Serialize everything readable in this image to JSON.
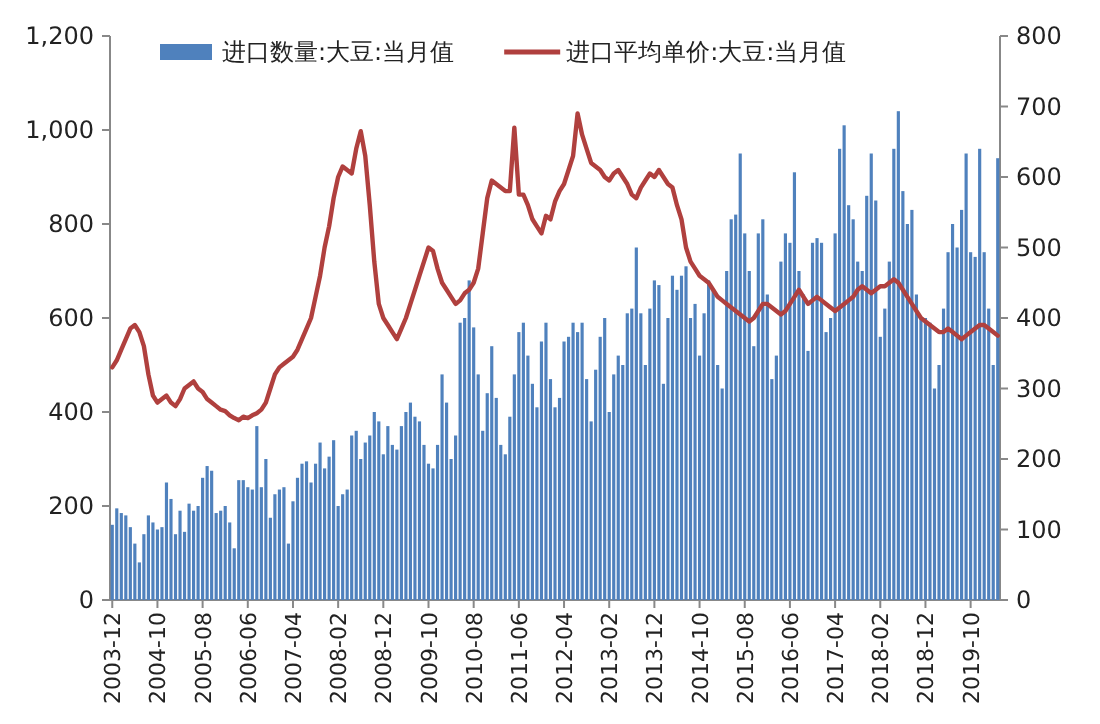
{
  "chart_data": {
    "type": "bar",
    "categories": [
      "2003-12",
      null,
      null,
      null,
      null,
      null,
      null,
      null,
      null,
      null,
      "2004-10",
      null,
      null,
      null,
      null,
      null,
      null,
      null,
      null,
      null,
      "2005-08",
      null,
      null,
      null,
      null,
      null,
      null,
      null,
      null,
      null,
      "2006-06",
      null,
      null,
      null,
      null,
      null,
      null,
      null,
      null,
      null,
      "2007-04",
      null,
      null,
      null,
      null,
      null,
      null,
      null,
      null,
      null,
      "2008-02",
      null,
      null,
      null,
      null,
      null,
      null,
      null,
      null,
      null,
      "2008-12",
      null,
      null,
      null,
      null,
      null,
      null,
      null,
      null,
      null,
      "2009-10",
      null,
      null,
      null,
      null,
      null,
      null,
      null,
      null,
      null,
      "2010-08",
      null,
      null,
      null,
      null,
      null,
      null,
      null,
      null,
      null,
      "2011-06",
      null,
      null,
      null,
      null,
      null,
      null,
      null,
      null,
      null,
      "2012-04",
      null,
      null,
      null,
      null,
      null,
      null,
      null,
      null,
      null,
      "2013-02",
      null,
      null,
      null,
      null,
      null,
      null,
      null,
      null,
      null,
      "2013-12",
      null,
      null,
      null,
      null,
      null,
      null,
      null,
      null,
      null,
      "2014-10",
      null,
      null,
      null,
      null,
      null,
      null,
      null,
      null,
      null,
      "2015-08",
      null,
      null,
      null,
      null,
      null,
      null,
      null,
      null,
      null,
      "2016-06",
      null,
      null,
      null,
      null,
      null,
      null,
      null,
      null,
      null,
      "2017-04",
      null,
      null,
      null,
      null,
      null,
      null,
      null,
      null,
      null,
      "2018-02",
      null,
      null,
      null,
      null,
      null,
      null,
      null,
      null,
      null,
      "2018-12",
      null,
      null,
      null,
      null,
      null,
      null,
      null,
      null,
      null,
      "2019-10",
      null,
      null,
      null,
      null,
      null,
      null
    ],
    "series": [
      {
        "name": "进口数量:大豆:当月值",
        "color": "#4f81bd",
        "values": [
          160,
          195,
          185,
          180,
          155,
          120,
          80,
          140,
          180,
          165,
          150,
          155,
          250,
          215,
          140,
          190,
          145,
          205,
          190,
          200,
          260,
          285,
          275,
          185,
          190,
          200,
          165,
          110,
          255,
          255,
          240,
          235,
          370,
          240,
          300,
          175,
          225,
          235,
          240,
          120,
          210,
          260,
          290,
          295,
          250,
          290,
          335,
          280,
          305,
          340,
          200,
          225,
          235,
          350,
          360,
          300,
          335,
          350,
          400,
          380,
          310,
          370,
          330,
          320,
          370,
          400,
          420,
          390,
          380,
          330,
          290,
          280,
          330,
          480,
          420,
          300,
          350,
          590,
          600,
          680,
          580,
          480,
          360,
          440,
          540,
          430,
          330,
          310,
          390,
          480,
          570,
          590,
          520,
          460,
          410,
          550,
          590,
          470,
          410,
          430,
          550,
          560,
          590,
          570,
          590,
          470,
          380,
          490,
          560,
          600,
          400,
          480,
          520,
          500,
          610,
          620,
          750,
          610,
          500,
          620,
          680,
          670,
          460,
          600,
          690,
          660,
          690,
          710,
          600,
          630,
          520,
          610,
          680,
          660,
          500,
          450,
          700,
          810,
          820,
          950,
          780,
          700,
          540,
          780,
          810,
          650,
          470,
          520,
          720,
          780,
          760,
          910,
          700,
          650,
          530,
          760,
          770,
          760,
          570,
          600,
          780,
          960,
          1010,
          840,
          810,
          720,
          700,
          860,
          950,
          850,
          560,
          620,
          720,
          960,
          1040,
          870,
          800,
          830,
          650,
          600,
          600,
          590,
          450,
          500,
          620,
          740,
          800,
          750,
          830,
          950,
          740,
          730,
          960,
          740,
          620,
          500,
          940
        ]
      },
      {
        "name": "进口平均单价:大豆:当月值",
        "type": "line",
        "axis": "y2",
        "color": "#b0403e",
        "values": [
          330,
          340,
          355,
          370,
          385,
          390,
          380,
          360,
          320,
          290,
          280,
          285,
          290,
          280,
          275,
          285,
          300,
          305,
          310,
          300,
          295,
          285,
          280,
          275,
          270,
          268,
          262,
          258,
          255,
          260,
          258,
          262,
          265,
          270,
          280,
          300,
          320,
          330,
          335,
          340,
          345,
          355,
          370,
          385,
          400,
          430,
          460,
          500,
          530,
          570,
          600,
          615,
          610,
          605,
          640,
          665,
          630,
          560,
          480,
          420,
          400,
          390,
          380,
          370,
          385,
          400,
          420,
          440,
          460,
          480,
          500,
          495,
          470,
          450,
          440,
          430,
          420,
          425,
          435,
          440,
          450,
          470,
          520,
          570,
          595,
          590,
          585,
          580,
          580,
          670,
          575,
          575,
          560,
          540,
          530,
          520,
          545,
          540,
          565,
          580,
          590,
          610,
          630,
          690,
          660,
          640,
          620,
          615,
          610,
          600,
          595,
          605,
          610,
          600,
          590,
          575,
          570,
          585,
          595,
          605,
          600,
          610,
          600,
          590,
          585,
          560,
          540,
          500,
          480,
          470,
          460,
          455,
          450,
          440,
          430,
          425,
          420,
          415,
          410,
          405,
          400,
          395,
          400,
          410,
          420,
          420,
          415,
          410,
          405,
          410,
          420,
          430,
          440,
          430,
          420,
          425,
          430,
          425,
          420,
          415,
          410,
          415,
          420,
          425,
          430,
          440,
          445,
          440,
          435,
          440,
          445,
          445,
          450,
          455,
          450,
          440,
          430,
          420,
          410,
          400,
          395,
          390,
          385,
          380,
          380,
          385,
          380,
          375,
          370,
          375,
          380,
          385,
          390,
          390,
          385,
          380,
          375
        ]
      }
    ],
    "ylim": [
      0,
      1200
    ],
    "yticks": [
      0,
      200,
      400,
      600,
      800,
      {
        "value": 1000,
        "label": "1,000"
      },
      {
        "value": 1200,
        "label": "1,200"
      }
    ],
    "y2lim": [
      0,
      800
    ],
    "y2ticks": [
      0,
      100,
      200,
      300,
      400,
      500,
      600,
      700,
      800
    ],
    "legend": "top"
  }
}
